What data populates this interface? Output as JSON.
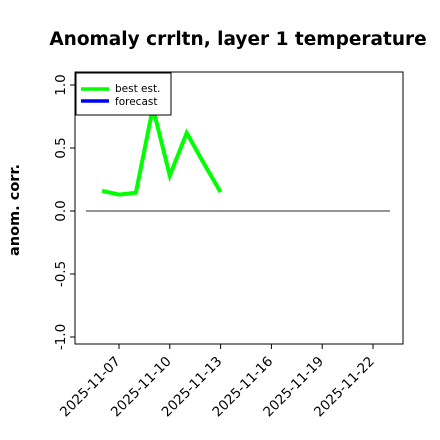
{
  "chart_data": {
    "type": "line",
    "title": "Anomaly crrltn, layer 1 temperature",
    "xlabel": "",
    "ylabel": "anom. corr.",
    "ylim": [
      -1.0,
      1.0
    ],
    "y_ticks": [
      "1.0",
      "0.5",
      "0.0",
      "-0.5",
      "-1.0"
    ],
    "y_tick_values": [
      1.0,
      0.5,
      0.0,
      -0.5,
      -1.0
    ],
    "x_ticks": [
      {
        "label": "2025-11-07",
        "value": 0,
        "color": "#000000"
      },
      {
        "label": "2025-11-10",
        "value": 3,
        "color": "#000000"
      },
      {
        "label": "2025-11-13",
        "value": 6,
        "color": "#2e7d32"
      },
      {
        "label": "2025-11-16",
        "value": 9,
        "color": "#000000"
      },
      {
        "label": "2025-11-19",
        "value": 12,
        "color": "#000000"
      },
      {
        "label": "2025-11-22",
        "value": 15,
        "color": "#000000"
      }
    ],
    "xlim": [
      -2,
      17
    ],
    "grid": false,
    "legend_position": "top-left",
    "series": [
      {
        "name": "best est.",
        "color": "#00ff00",
        "x": [
          -1,
          0,
          1,
          2,
          3,
          4,
          5,
          6
        ],
        "y": [
          0.16,
          0.13,
          0.145,
          0.82,
          0.28,
          0.62,
          0.38,
          0.15
        ]
      },
      {
        "name": "forecast",
        "color": "#0000ff",
        "x": [],
        "y": []
      }
    ],
    "reference_line": {
      "y": 0.0,
      "x_from": -2,
      "x_to": 17,
      "color": "#555555"
    }
  }
}
